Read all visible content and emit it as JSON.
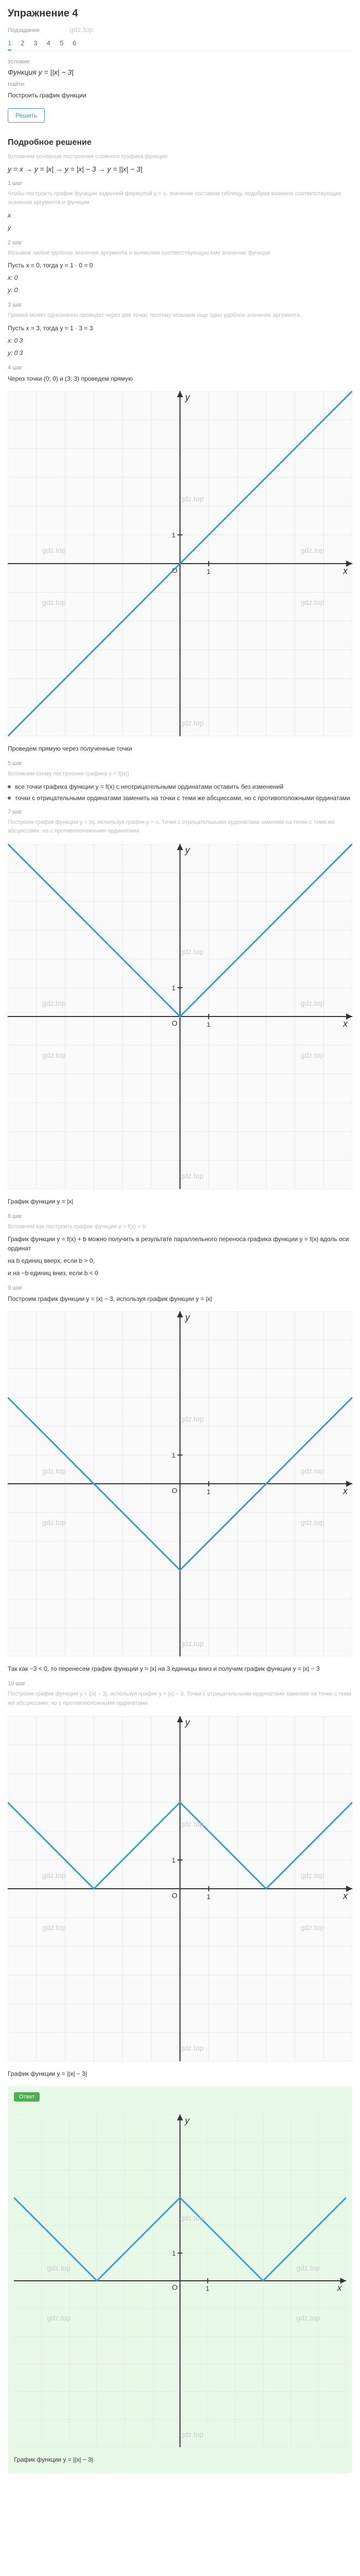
{
  "title": "Упражнение 4",
  "tabs_label": "Подзадание",
  "tabs": [
    "1",
    "2",
    "3",
    "4",
    "5",
    "6"
  ],
  "active_tab": 0,
  "cond_label": "Условие:",
  "cond_formula": "Функция y = ||x| − 3|",
  "find_label": "Найти:",
  "find_text": "Построить график функции",
  "solution_title": "Подробное решение",
  "faint1": "Вспомним основные построения сложного графика функции",
  "formula_chain": "y = x → y = |x| → y = |x| − 3 → y = ||x| − 3|",
  "step1_label": "1 шаг",
  "faint2": "Чтобы построить график функции заданной формулой y = x, значение составим таблицу, подобрав взаимно соответствующие значения аргумента и функции",
  "x_label": "x",
  "y_label": "y",
  "step2_label": "2 шаг",
  "faint3": "Возьмем любое удобное значение аргумента и вычислим соответствующую ему значение функции",
  "step2_text1": "Пусть x = 0, тогда y = 1 · 0 = 0",
  "step2_x": "x: 0",
  "step2_y": "y: 0",
  "step3_label": "3 шаг",
  "faint4": "Прямая может однозначно проведет через две точки, поэтому возьмем еще одно удобное значение аргумента",
  "step3_text1": "Пусть x = 3, тогда y = 1 · 3 = 3",
  "step3_x": "x: 0  3",
  "step3_y": "y: 0  3",
  "step4_label": "4 шаг",
  "step4_text": "Через точки (0; 0) и (3; 3) проведем прямую",
  "chart1": {
    "type": "line",
    "xlim": [
      -6,
      6
    ],
    "ylim": [
      -6,
      6
    ],
    "line_color": "#2a9fd6",
    "line_width": 3,
    "grid_color": "#e8e8e8",
    "axis_color": "#333",
    "points": [
      [
        -6,
        -6
      ],
      [
        6,
        6
      ]
    ],
    "aspect": 1
  },
  "mid_text1": "Проведем прямую через полученные точки",
  "step5_label": "5 шаг",
  "faint5": "Вспомним схему построения графика y = f(|x|)",
  "step5_li1": "все точки графика функции y = f(x) с неотрицательными ординатами оставить без изменений",
  "step5_li2": "точки с отрицательными ординатами заменить на точки с теми же абсциссами, но с противоположными ординатами",
  "step7_label": "7 шаг",
  "faint7": "Построим график функции y = |x|, используя график y = x. Точки с отрицательными ординатами заменим на точки с теми же абсциссами, но с противоположными ординатами",
  "chart2": {
    "type": "line",
    "xlim": [
      -6,
      6
    ],
    "ylim": [
      -6,
      6
    ],
    "line_color": "#2a9fd6",
    "line_width": 3,
    "grid_color": "#e8e8e8",
    "axis_color": "#333",
    "points": [
      [
        -6,
        6
      ],
      [
        0,
        0
      ],
      [
        6,
        6
      ]
    ],
    "aspect": 1
  },
  "chart2_caption": "График функции y = |x|",
  "step8_label": "8 шаг",
  "faint8": "Вспомним как построить график функции y = f(x) + b",
  "step8_text1": "График функции y = f(x) + b можно получить в результате параллельного переноса графика функции y = f(x) вдоль оси ординат",
  "step8_text2": "на b единиц вверх, если b > 0,",
  "step8_text3": "и на −b единиц вниз, если b < 0",
  "step9_label": "9 шаг",
  "step9_text": "Построим график функции y = |x| − 3, используя график функции y = |x|",
  "chart3": {
    "type": "line",
    "xlim": [
      -6,
      6
    ],
    "ylim": [
      -6,
      6
    ],
    "line_color": "#2a9fd6",
    "line_width": 3,
    "grid_color": "#e8e8e8",
    "axis_color": "#333",
    "points": [
      [
        -6,
        3
      ],
      [
        0,
        -3
      ],
      [
        6,
        3
      ]
    ],
    "aspect": 1
  },
  "step9_after": "Так как −3 < 0, то перенесем график функции y = |x| на 3 единицы вниз и получим график функции y = |x| − 3",
  "step10_label": "10 шаг",
  "faint10": "Построим график функции y = ||x| − 3|, используя график y = |x| − 3. Точки с отрицательными ординатами заменим на точки с теми же абсциссами, но с противоположными ординатами",
  "chart4": {
    "type": "line",
    "xlim": [
      -6,
      6
    ],
    "ylim": [
      -6,
      6
    ],
    "line_color": "#2a9fd6",
    "line_width": 3,
    "grid_color": "#e8e8e8",
    "axis_color": "#333",
    "points": [
      [
        -6,
        3
      ],
      [
        -3,
        0
      ],
      [
        0,
        3
      ],
      [
        3,
        0
      ],
      [
        6,
        3
      ]
    ],
    "aspect": 1
  },
  "chart4_caption": "График функции y = ||x| − 3|",
  "answer_label": "Ответ",
  "chart5": {
    "type": "line",
    "xlim": [
      -6,
      6
    ],
    "ylim": [
      -6,
      6
    ],
    "line_color": "#2a9fd6",
    "line_width": 3,
    "grid_color": "#e8e8e8",
    "axis_color": "#333",
    "background": "#e8f9e8",
    "points": [
      [
        -6,
        3
      ],
      [
        -3,
        0
      ],
      [
        0,
        3
      ],
      [
        3,
        0
      ],
      [
        6,
        3
      ]
    ],
    "aspect": 1
  },
  "answer_caption": "График функции y = ||x| − 3|",
  "watermark": "gdz.top",
  "wm_positions": {
    "body": [
      [
        120,
        28
      ],
      [
        120,
        108
      ]
    ],
    "chart": [
      [
        50,
        30
      ],
      [
        10,
        45
      ],
      [
        50,
        95
      ],
      [
        10,
        60
      ],
      [
        85,
        45
      ],
      [
        85,
        60
      ]
    ]
  }
}
